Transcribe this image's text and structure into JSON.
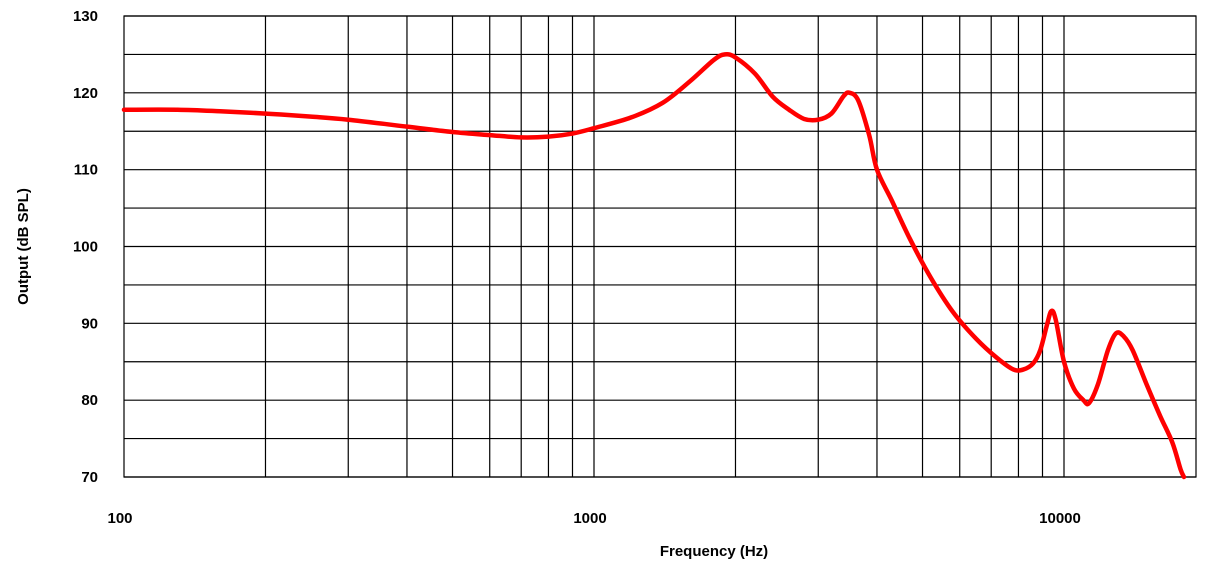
{
  "chart_data": {
    "type": "line",
    "xscale": "log",
    "xlim": [
      100,
      18000
    ],
    "ylim": [
      70,
      130
    ],
    "xlabel": "Frequency (Hz)",
    "ylabel": "Output (dB SPL)",
    "x_tick_labels": [
      "100",
      "1000",
      "10000"
    ],
    "y_tick_labels": [
      "70",
      "80",
      "90",
      "100",
      "110",
      "120",
      "130"
    ],
    "grid": true,
    "legend": "none",
    "series": [
      {
        "color": "#ff0000",
        "points": [
          [
            100,
            117.8
          ],
          [
            130,
            117.8
          ],
          [
            160,
            117.6
          ],
          [
            200,
            117.3
          ],
          [
            250,
            116.9
          ],
          [
            300,
            116.5
          ],
          [
            400,
            115.6
          ],
          [
            500,
            114.9
          ],
          [
            600,
            114.5
          ],
          [
            700,
            114.2
          ],
          [
            800,
            114.3
          ],
          [
            900,
            114.7
          ],
          [
            1000,
            115.4
          ],
          [
            1200,
            116.8
          ],
          [
            1400,
            118.7
          ],
          [
            1600,
            121.5
          ],
          [
            1800,
            124.3
          ],
          [
            1900,
            125.0
          ],
          [
            2000,
            124.6
          ],
          [
            2200,
            122.5
          ],
          [
            2400,
            119.5
          ],
          [
            2600,
            117.8
          ],
          [
            2800,
            116.6
          ],
          [
            3000,
            116.5
          ],
          [
            3200,
            117.3
          ],
          [
            3400,
            119.6
          ],
          [
            3500,
            120.0
          ],
          [
            3650,
            119.0
          ],
          [
            3850,
            114.5
          ],
          [
            4000,
            110.0
          ],
          [
            4300,
            106.0
          ],
          [
            4700,
            101.0
          ],
          [
            5200,
            96.0
          ],
          [
            5800,
            91.5
          ],
          [
            6500,
            88.0
          ],
          [
            7200,
            85.5
          ],
          [
            7800,
            84.0
          ],
          [
            8200,
            84.0
          ],
          [
            8600,
            84.8
          ],
          [
            8900,
            86.5
          ],
          [
            9200,
            89.8
          ],
          [
            9400,
            91.6
          ],
          [
            9600,
            90.5
          ],
          [
            10000,
            85.0
          ],
          [
            10500,
            81.5
          ],
          [
            11000,
            80.0
          ],
          [
            11300,
            79.6
          ],
          [
            11800,
            82.0
          ],
          [
            12400,
            86.5
          ],
          [
            12900,
            88.7
          ],
          [
            13400,
            88.3
          ],
          [
            14000,
            86.5
          ],
          [
            15000,
            82.0
          ],
          [
            16000,
            78.0
          ],
          [
            17000,
            74.5
          ],
          [
            17700,
            71.0
          ],
          [
            18000,
            70.0
          ]
        ]
      }
    ]
  }
}
